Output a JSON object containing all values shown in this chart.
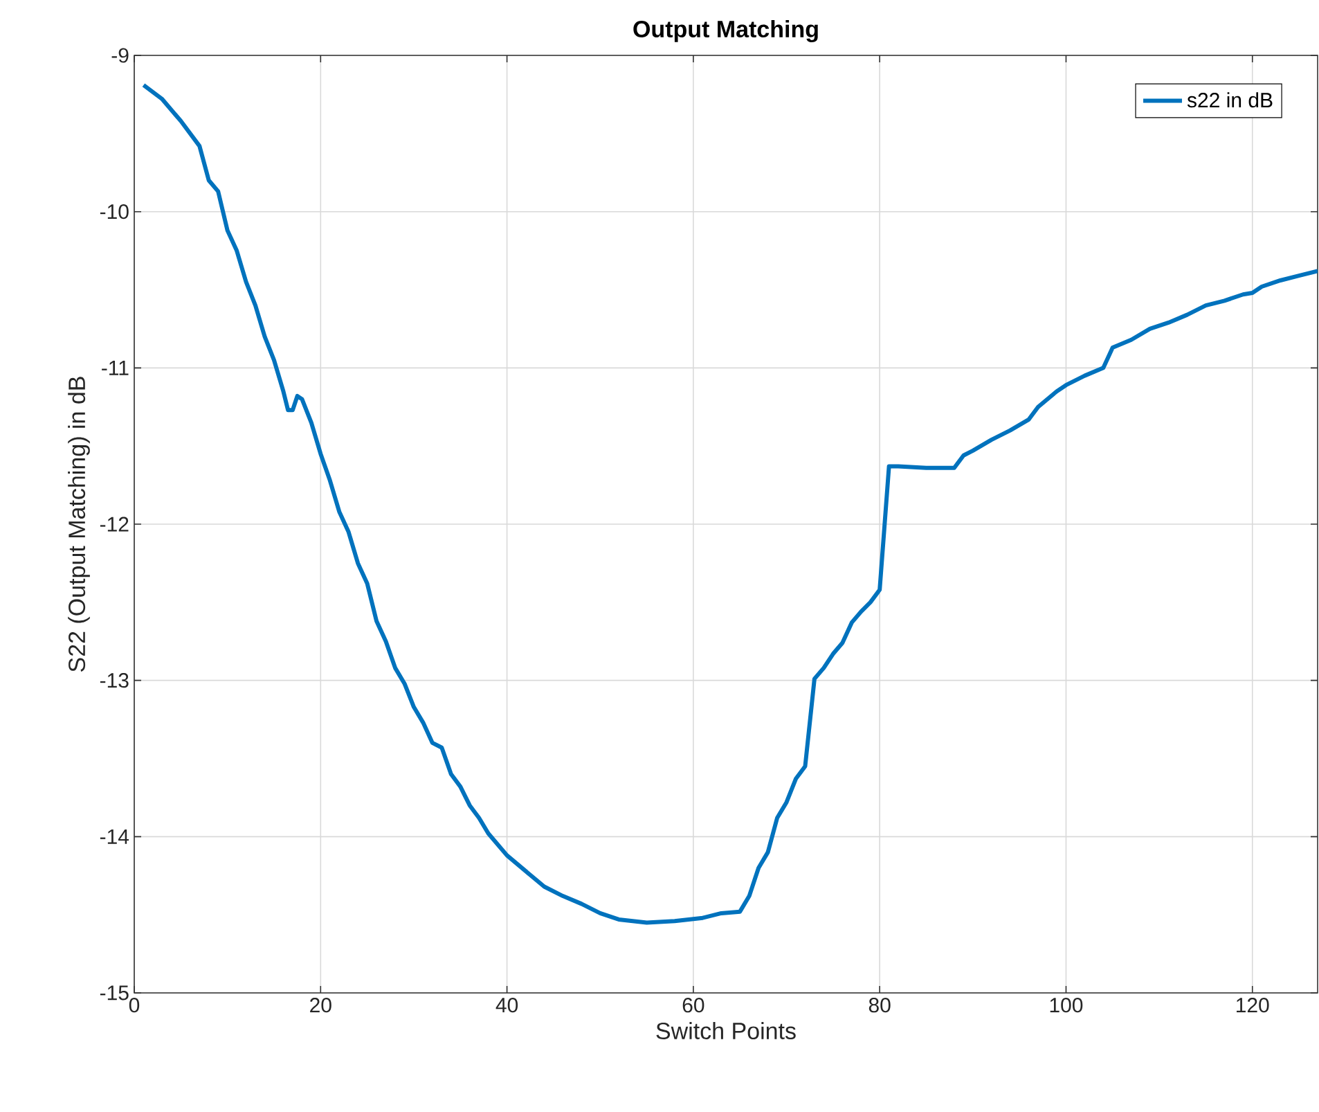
{
  "chart_data": {
    "type": "line",
    "title": "Output Matching",
    "xlabel": "Switch Points",
    "ylabel": "S22 (Output Matching) in dB",
    "x": [
      1,
      3,
      5,
      7,
      8,
      9,
      10,
      11,
      12,
      13,
      14,
      15,
      16,
      16.5,
      17,
      17.5,
      18,
      19,
      20,
      21,
      22,
      23,
      24,
      25,
      26,
      27,
      28,
      29,
      30,
      31,
      32,
      33,
      34,
      35,
      36,
      37,
      38,
      39,
      40,
      42,
      44,
      46,
      48,
      50,
      52,
      55,
      58,
      61,
      63,
      65,
      66,
      67,
      68,
      69,
      70,
      71,
      72,
      73,
      74,
      75,
      76,
      77,
      78,
      79,
      80,
      81,
      82,
      85,
      88,
      89,
      90,
      92,
      94,
      96,
      97,
      99,
      100,
      102,
      104,
      105,
      107,
      109,
      111,
      113,
      115,
      117,
      119,
      120,
      121,
      123,
      125,
      127
    ],
    "series": [
      {
        "name": "s22 in dB",
        "color": "#0072bd",
        "values": [
          -9.19,
          -9.28,
          -9.42,
          -9.58,
          -9.8,
          -9.87,
          -10.12,
          -10.25,
          -10.45,
          -10.6,
          -10.8,
          -10.95,
          -11.15,
          -11.27,
          -11.27,
          -11.18,
          -11.2,
          -11.35,
          -11.55,
          -11.72,
          -11.92,
          -12.05,
          -12.25,
          -12.38,
          -12.62,
          -12.75,
          -12.92,
          -13.02,
          -13.17,
          -13.27,
          -13.4,
          -13.43,
          -13.6,
          -13.68,
          -13.8,
          -13.88,
          -13.98,
          -14.05,
          -14.12,
          -14.22,
          -14.32,
          -14.38,
          -14.43,
          -14.49,
          -14.53,
          -14.55,
          -14.54,
          -14.52,
          -14.49,
          -14.48,
          -14.38,
          -14.2,
          -14.1,
          -13.88,
          -13.78,
          -13.63,
          -13.55,
          -12.99,
          -12.92,
          -12.83,
          -12.76,
          -12.63,
          -12.56,
          -12.5,
          -12.42,
          -11.63,
          -11.63,
          -11.64,
          -11.64,
          -11.56,
          -11.53,
          -11.46,
          -11.4,
          -11.33,
          -11.25,
          -11.15,
          -11.11,
          -11.05,
          -11.0,
          -10.87,
          -10.82,
          -10.75,
          -10.71,
          -10.66,
          -10.6,
          -10.57,
          -10.53,
          -10.52,
          -10.48,
          -10.44,
          -10.41,
          -10.38
        ]
      }
    ],
    "xlim": [
      0,
      127
    ],
    "ylim": [
      -15,
      -9
    ],
    "xticks": [
      0,
      20,
      40,
      60,
      80,
      100,
      120
    ],
    "yticks": [
      -15,
      -14,
      -13,
      -12,
      -11,
      -10,
      -9
    ],
    "grid": true,
    "legend": "top right",
    "marker": "none",
    "line_style": "solid"
  }
}
